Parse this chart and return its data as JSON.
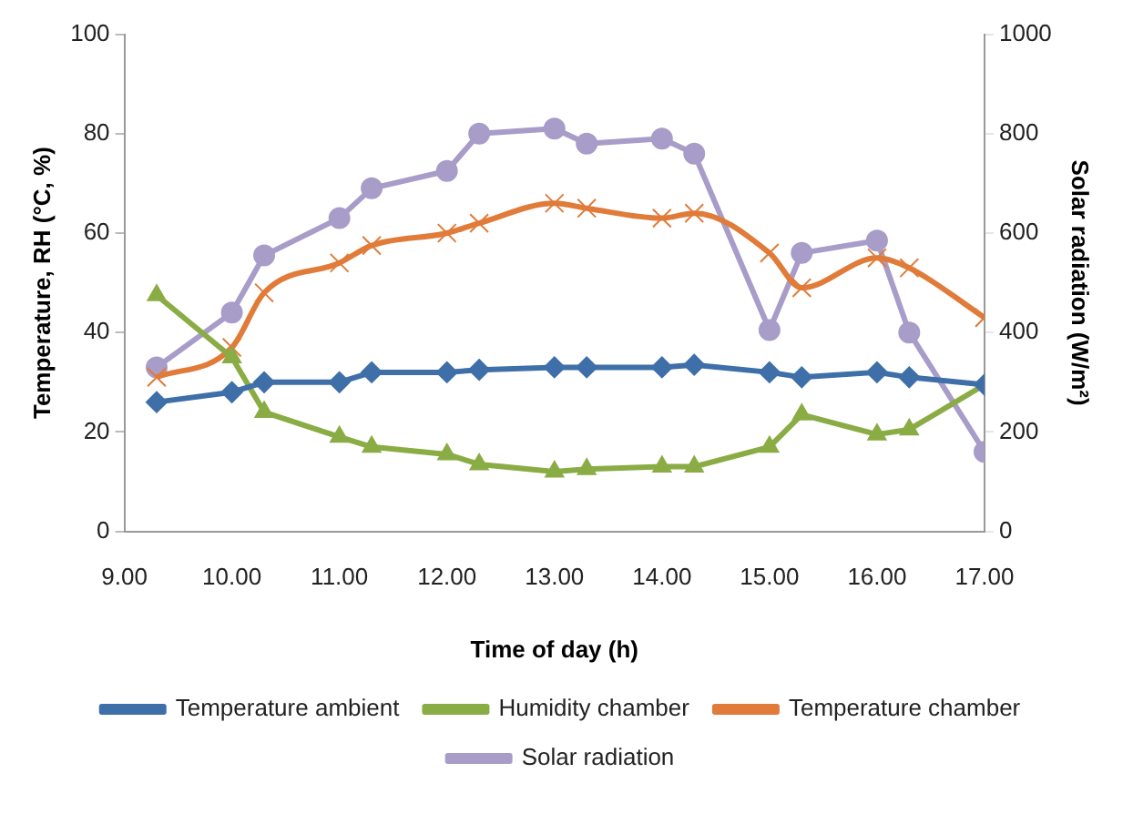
{
  "chart_data": {
    "type": "line",
    "xlabel": "Time of day (h)",
    "ylabel": "Temperature, RH (°C, %)",
    "y2label": "Solar radiation (W/m²)",
    "x": [
      9.3,
      10,
      10.3,
      11,
      11.3,
      12,
      12.3,
      13,
      13.3,
      14,
      14.3,
      15,
      15.3,
      16,
      16.3,
      17
    ],
    "xlim": [
      9,
      17
    ],
    "xticks": [
      {
        "value": 9,
        "label": "9.00"
      },
      {
        "value": 10,
        "label": "10.00"
      },
      {
        "value": 11,
        "label": "11.00"
      },
      {
        "value": 12,
        "label": "12.00"
      },
      {
        "value": 13,
        "label": "13.00"
      },
      {
        "value": 14,
        "label": "14.00"
      },
      {
        "value": 15,
        "label": "15.00"
      },
      {
        "value": 16,
        "label": "16.00"
      },
      {
        "value": 17,
        "label": "17.00"
      }
    ],
    "ylim": [
      0,
      100
    ],
    "yticks": [
      0,
      20,
      40,
      60,
      80,
      100
    ],
    "y2lim": [
      0,
      1000
    ],
    "y2ticks": [
      0,
      200,
      400,
      600,
      800,
      1000
    ],
    "grid": false,
    "legend": "bottom",
    "series": [
      {
        "name": "Temperature ambient",
        "color": "#3f6fa8",
        "marker": "diamond",
        "values": [
          26,
          28,
          30,
          30,
          32,
          32,
          32.5,
          33,
          33,
          33,
          33.5,
          32,
          31,
          32,
          31,
          29.5
        ]
      },
      {
        "name": "Humidity chamber",
        "color": "#8aac44",
        "marker": "triangle",
        "values": [
          47.5,
          35,
          24,
          19,
          17,
          15.5,
          13.5,
          12,
          12.5,
          13,
          13,
          17,
          23.5,
          19.5,
          20.5,
          29.5
        ]
      },
      {
        "name": "Temperature chamber",
        "color": "#e07b39",
        "marker": "cross",
        "values": [
          31,
          37,
          48,
          54,
          57.5,
          60,
          62,
          66,
          65,
          63,
          64,
          56,
          49,
          55,
          53,
          43
        ]
      },
      {
        "name": "Solar radiation",
        "color": "#a89cc8",
        "marker": "circle",
        "axis": "y2",
        "values": [
          330,
          440,
          555,
          630,
          690,
          725,
          800,
          810,
          780,
          790,
          760,
          405,
          560,
          585,
          400,
          160
        ]
      }
    ]
  }
}
